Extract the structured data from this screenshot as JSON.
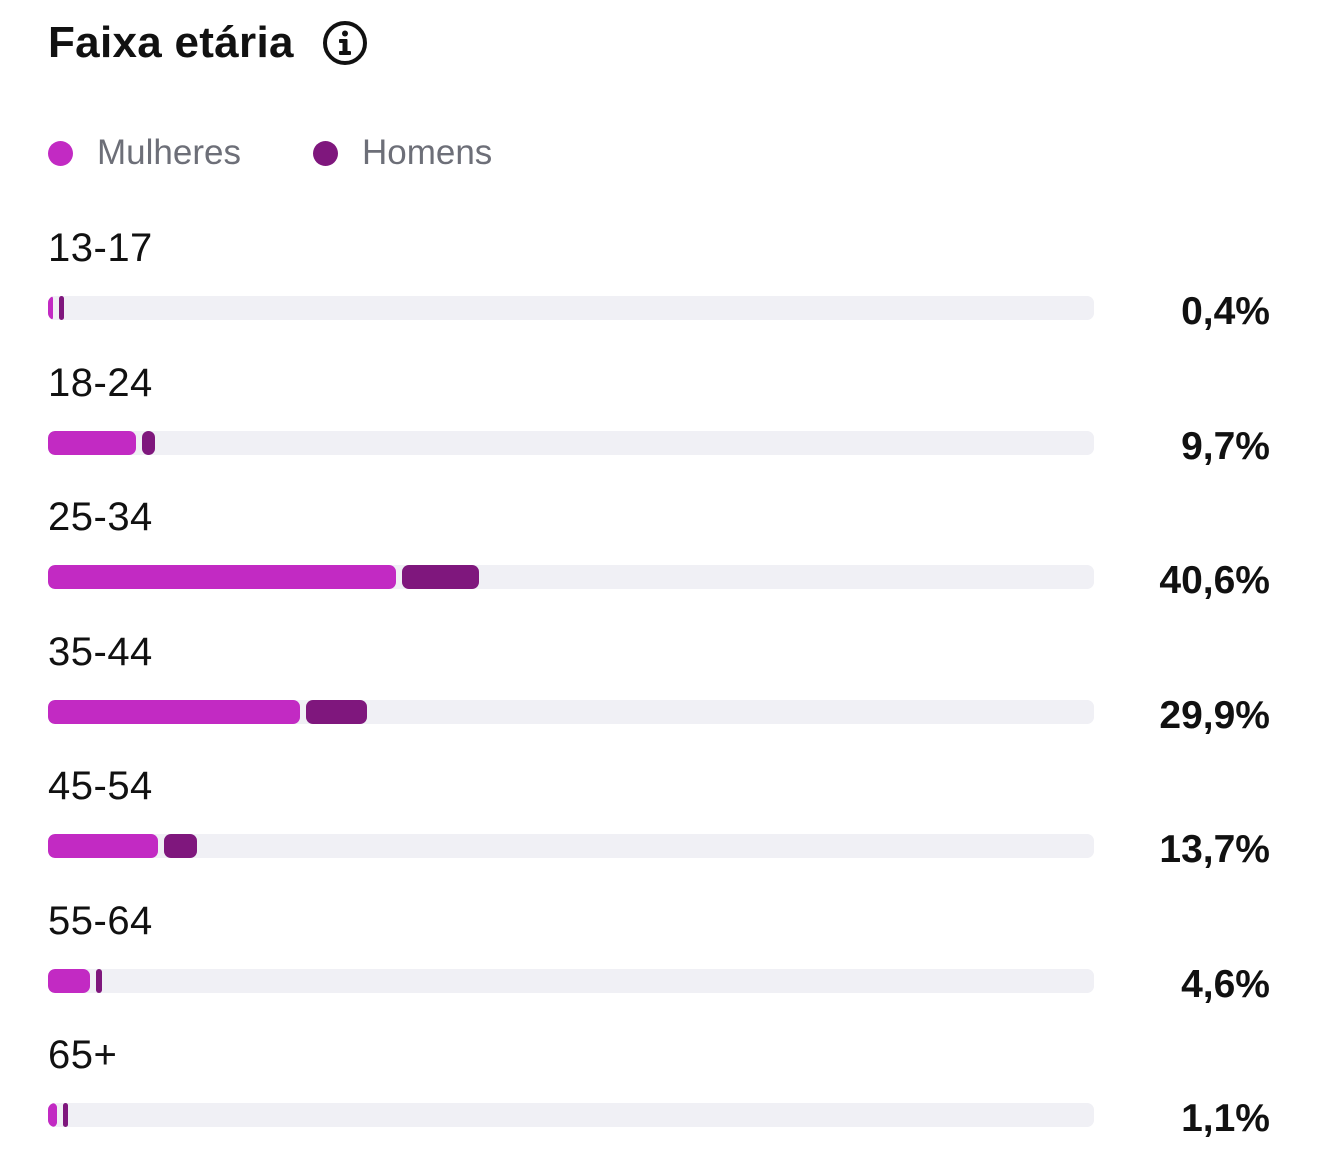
{
  "header": {
    "title": "Faixa etária",
    "info_icon": "info-circle-icon"
  },
  "legend": [
    {
      "label": "Mulheres",
      "color": "#c22ac3"
    },
    {
      "label": "Homens",
      "color": "#7f177d"
    }
  ],
  "chart_data": {
    "type": "bar",
    "orientation": "horizontal",
    "stacked": true,
    "title": "Faixa etária",
    "categories": [
      "13-17",
      "18-24",
      "25-34",
      "35-44",
      "45-54",
      "55-64",
      "65+"
    ],
    "totals_label": [
      "0,4%",
      "9,7%",
      "40,6%",
      "29,9%",
      "13,7%",
      "4,6%",
      "1,1%"
    ],
    "totals": [
      0.4,
      9.7,
      40.6,
      29.9,
      13.7,
      4.6,
      1.1
    ],
    "series": [
      {
        "name": "Mulheres",
        "color": "#c22ac3",
        "values": [
          0.3,
          8.4,
          33.3,
          24.1,
          10.5,
          4.0,
          0.9
        ]
      },
      {
        "name": "Homens",
        "color": "#7f177d",
        "values": [
          0.1,
          1.3,
          7.3,
          5.8,
          3.2,
          0.6,
          0.2
        ]
      }
    ],
    "xlim": [
      0,
      100
    ],
    "track_color": "#f0f0f5"
  }
}
